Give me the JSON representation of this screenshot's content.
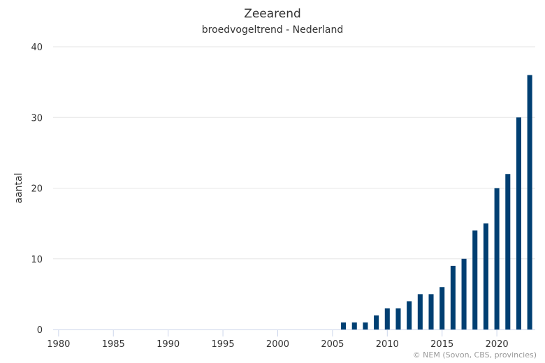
{
  "chart_data": {
    "type": "bar",
    "title": "Zeearend",
    "subtitle": "broedvogeltrend - Nederland",
    "xlabel": "",
    "ylabel": "aantal",
    "credit": "© NEM (Sovon, CBS, provincies)",
    "xlim": [
      1980,
      2023
    ],
    "ylim": [
      0,
      40
    ],
    "xticks": [
      1980,
      1985,
      1990,
      1995,
      2000,
      2005,
      2010,
      2015,
      2020
    ],
    "yticks": [
      0,
      10,
      20,
      30,
      40
    ],
    "grid": true,
    "color": "#003f72",
    "x": [
      1980,
      1981,
      1982,
      1983,
      1984,
      1985,
      1986,
      1987,
      1988,
      1989,
      1990,
      1991,
      1992,
      1993,
      1994,
      1995,
      1996,
      1997,
      1998,
      1999,
      2000,
      2001,
      2002,
      2003,
      2004,
      2005,
      2006,
      2007,
      2008,
      2009,
      2010,
      2011,
      2012,
      2013,
      2014,
      2015,
      2016,
      2017,
      2018,
      2019,
      2020,
      2021,
      2022,
      2023
    ],
    "values": [
      0,
      0,
      0,
      0,
      0,
      0,
      0,
      0,
      0,
      0,
      0,
      0,
      0,
      0,
      0,
      0,
      0,
      0,
      0,
      0,
      0,
      0,
      0,
      0,
      0,
      0,
      1,
      1,
      1,
      2,
      3,
      3,
      4,
      5,
      5,
      6,
      9,
      10,
      14,
      15,
      20,
      22,
      30,
      36
    ]
  }
}
